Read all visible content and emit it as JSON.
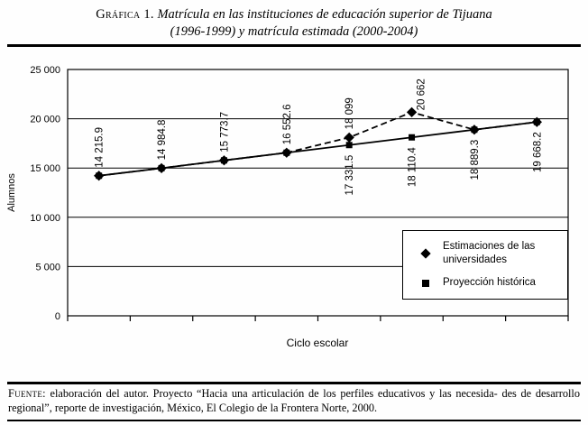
{
  "page": {
    "title_prefix": "Gráfica 1.",
    "title_line1": "Matrícula en las instituciones de educación superior de Tijuana",
    "title_line2": "(1996-1999) y matrícula estimada (2000-2004)",
    "source_prefix": "Fuente:",
    "source_line1": "elaboración del autor. Proyecto “Hacia una articulación de los perfiles educativos y las necesida-",
    "source_line2": "des de desarrollo regional”, reporte de investigación, México, El Colegio de la Frontera Norte, 2000."
  },
  "chart_data": {
    "type": "line",
    "title": "Matrícula en las instituciones de educación superior de Tijuana (1996-1999) y matrícula estimada (2000-2004)",
    "xlabel": "Ciclo escolar",
    "ylabel": "Alumnos",
    "ylim": [
      0,
      25000
    ],
    "ytick_interval": 5000,
    "ytick_labels": [
      "0",
      "5 000",
      "10 000",
      "15 000",
      "20 000",
      "25 000"
    ],
    "x_tick_labels_visible": false,
    "grid": true,
    "legend_position": "inside-right",
    "line_color": "#000000",
    "series": [
      {
        "name": "Estimaciones de las universidades",
        "marker": "diamond",
        "line_style": "dashed",
        "values": [
          14215.9,
          14984.8,
          15773.7,
          16552.6,
          18099,
          20662,
          18889.3,
          19668.2
        ]
      },
      {
        "name": "Proyección histórica",
        "marker": "square",
        "line_style": "solid",
        "values": [
          14215.9,
          14984.8,
          15773.7,
          16552.6,
          17331.5,
          18110.4,
          18889.3,
          19668.2
        ]
      }
    ],
    "point_labels": [
      {
        "text": "14 215.9",
        "series": 0,
        "index": 0,
        "placement": "above"
      },
      {
        "text": "14 984.8",
        "series": 0,
        "index": 1,
        "placement": "above"
      },
      {
        "text": "15 773.7",
        "series": 0,
        "index": 2,
        "placement": "above"
      },
      {
        "text": "16 552.6",
        "series": 0,
        "index": 3,
        "placement": "above"
      },
      {
        "text": "18 099",
        "series": 0,
        "index": 4,
        "placement": "above"
      },
      {
        "text": "17 331.5",
        "series": 1,
        "index": 4,
        "placement": "below"
      },
      {
        "text": "20 662",
        "series": 0,
        "index": 5,
        "placement": "above-right"
      },
      {
        "text": "18 110.4",
        "series": 1,
        "index": 5,
        "placement": "below"
      },
      {
        "text": "18 889.3",
        "series": 1,
        "index": 6,
        "placement": "below"
      },
      {
        "text": "19 668.2",
        "series": 1,
        "index": 7,
        "placement": "below"
      }
    ]
  }
}
